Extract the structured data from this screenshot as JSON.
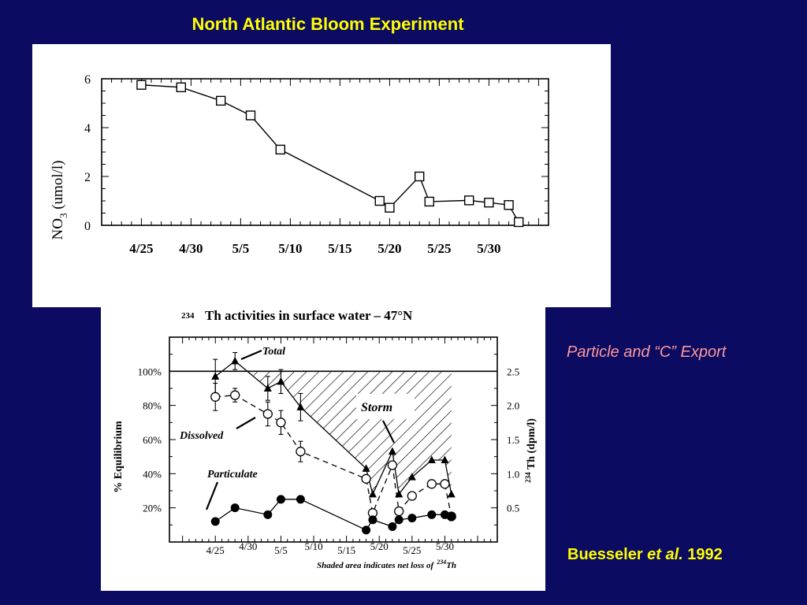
{
  "slide": {
    "title": "North Atlantic Bloom Experiment",
    "right_label": "Particle and “C” Export",
    "citation_author": "Buesseler ",
    "citation_etal": "et al.",
    "citation_year": " 1992"
  },
  "chart_data": [
    {
      "type": "line",
      "title": "",
      "ylabel": "NO3 (umol/l)",
      "ylabel_main": "NO",
      "ylabel_sub": "3",
      "ylabel_unit": "(umol/l)",
      "xlabel": "",
      "x_ticklabels": [
        "4/25",
        "4/30",
        "5/5",
        "5/10",
        "5/15",
        "5/20",
        "5/25",
        "5/30"
      ],
      "y_ticks": [
        0,
        2,
        4,
        6
      ],
      "ylim": [
        0,
        6
      ],
      "x_range_days": [
        "4/21",
        "6/5"
      ],
      "marker": "open-square",
      "series": [
        {
          "name": "",
          "points": [
            {
              "x": "4/25",
              "y": 5.75
            },
            {
              "x": "4/29",
              "y": 5.65
            },
            {
              "x": "5/3",
              "y": 5.1
            },
            {
              "x": "5/6",
              "y": 4.5
            },
            {
              "x": "5/9",
              "y": 3.1
            },
            {
              "x": "5/19",
              "y": 1.0
            },
            {
              "x": "5/20",
              "y": 0.72
            },
            {
              "x": "5/23",
              "y": 2.0
            },
            {
              "x": "5/24",
              "y": 0.97
            },
            {
              "x": "5/28",
              "y": 1.02
            },
            {
              "x": "5/30",
              "y": 0.93
            },
            {
              "x": "6/1",
              "y": 0.83
            },
            {
              "x": "6/2",
              "y": 0.13
            }
          ]
        }
      ]
    },
    {
      "type": "line",
      "title_sup": "234",
      "title": "Th activities in surface water – 47°N",
      "ylabel_left": "% Equilibrium",
      "ylabel_right_sup": "234",
      "ylabel_right": "Th (dpm/l)",
      "x_ticklabels": [
        "4/25",
        "4/30",
        "5/5",
        "5/10",
        "5/15",
        "5/20",
        "5/25",
        "5/30"
      ],
      "y_left_ticklabels": [
        "20%",
        "40%",
        "60%",
        "80%",
        "100%"
      ],
      "y_right_ticklabels": [
        "0.5",
        "1.0",
        "1.5",
        "2.0",
        "2.5"
      ],
      "y_left_lim": [
        0,
        120
      ],
      "y_right_lim": [
        0,
        3.0
      ],
      "reference_line_pct": 100,
      "footnote": "Shaded area indicates net loss of",
      "footnote_sup": "234",
      "footnote_end": "Th",
      "annotations": [
        "Total",
        "Dissolved",
        "Particulate",
        "Storm"
      ],
      "series": [
        {
          "name": "Total",
          "marker": "filled-triangle",
          "line": "solid",
          "points": [
            {
              "x": "4/25",
              "y": 97,
              "err": 10
            },
            {
              "x": "4/28",
              "y": 106,
              "err": 5
            },
            {
              "x": "5/3",
              "y": 90,
              "err": 7
            },
            {
              "x": "5/5",
              "y": 94,
              "err": 7
            },
            {
              "x": "5/8",
              "y": 79,
              "err": 8
            },
            {
              "x": "5/18",
              "y": 43
            },
            {
              "x": "5/19",
              "y": 28
            },
            {
              "x": "5/22",
              "y": 53
            },
            {
              "x": "5/23",
              "y": 28
            },
            {
              "x": "5/25",
              "y": 38
            },
            {
              "x": "5/28",
              "y": 48
            },
            {
              "x": "5/30",
              "y": 48
            },
            {
              "x": "5/31",
              "y": 28
            }
          ]
        },
        {
          "name": "Dissolved",
          "marker": "open-circle",
          "line": "dashed",
          "points": [
            {
              "x": "4/25",
              "y": 85,
              "err": 8
            },
            {
              "x": "4/28",
              "y": 86,
              "err": 4
            },
            {
              "x": "5/3",
              "y": 75,
              "err": 7
            },
            {
              "x": "5/5",
              "y": 70,
              "err": 7
            },
            {
              "x": "5/8",
              "y": 53,
              "err": 6
            },
            {
              "x": "5/18",
              "y": 37
            },
            {
              "x": "5/19",
              "y": 17
            },
            {
              "x": "5/22",
              "y": 45
            },
            {
              "x": "5/23",
              "y": 18
            },
            {
              "x": "5/25",
              "y": 27
            },
            {
              "x": "5/28",
              "y": 34
            },
            {
              "x": "5/30",
              "y": 34
            },
            {
              "x": "5/31",
              "y": 15
            }
          ]
        },
        {
          "name": "Particulate",
          "marker": "filled-circle",
          "line": "solid",
          "points": [
            {
              "x": "4/25",
              "y": 12
            },
            {
              "x": "4/28",
              "y": 20
            },
            {
              "x": "5/3",
              "y": 16
            },
            {
              "x": "5/5",
              "y": 25
            },
            {
              "x": "5/8",
              "y": 25
            },
            {
              "x": "5/18",
              "y": 7
            },
            {
              "x": "5/19",
              "y": 13
            },
            {
              "x": "5/22",
              "y": 9
            },
            {
              "x": "5/23",
              "y": 13
            },
            {
              "x": "5/25",
              "y": 14
            },
            {
              "x": "5/28",
              "y": 16
            },
            {
              "x": "5/30",
              "y": 16
            },
            {
              "x": "5/31",
              "y": 15
            }
          ]
        }
      ]
    }
  ]
}
